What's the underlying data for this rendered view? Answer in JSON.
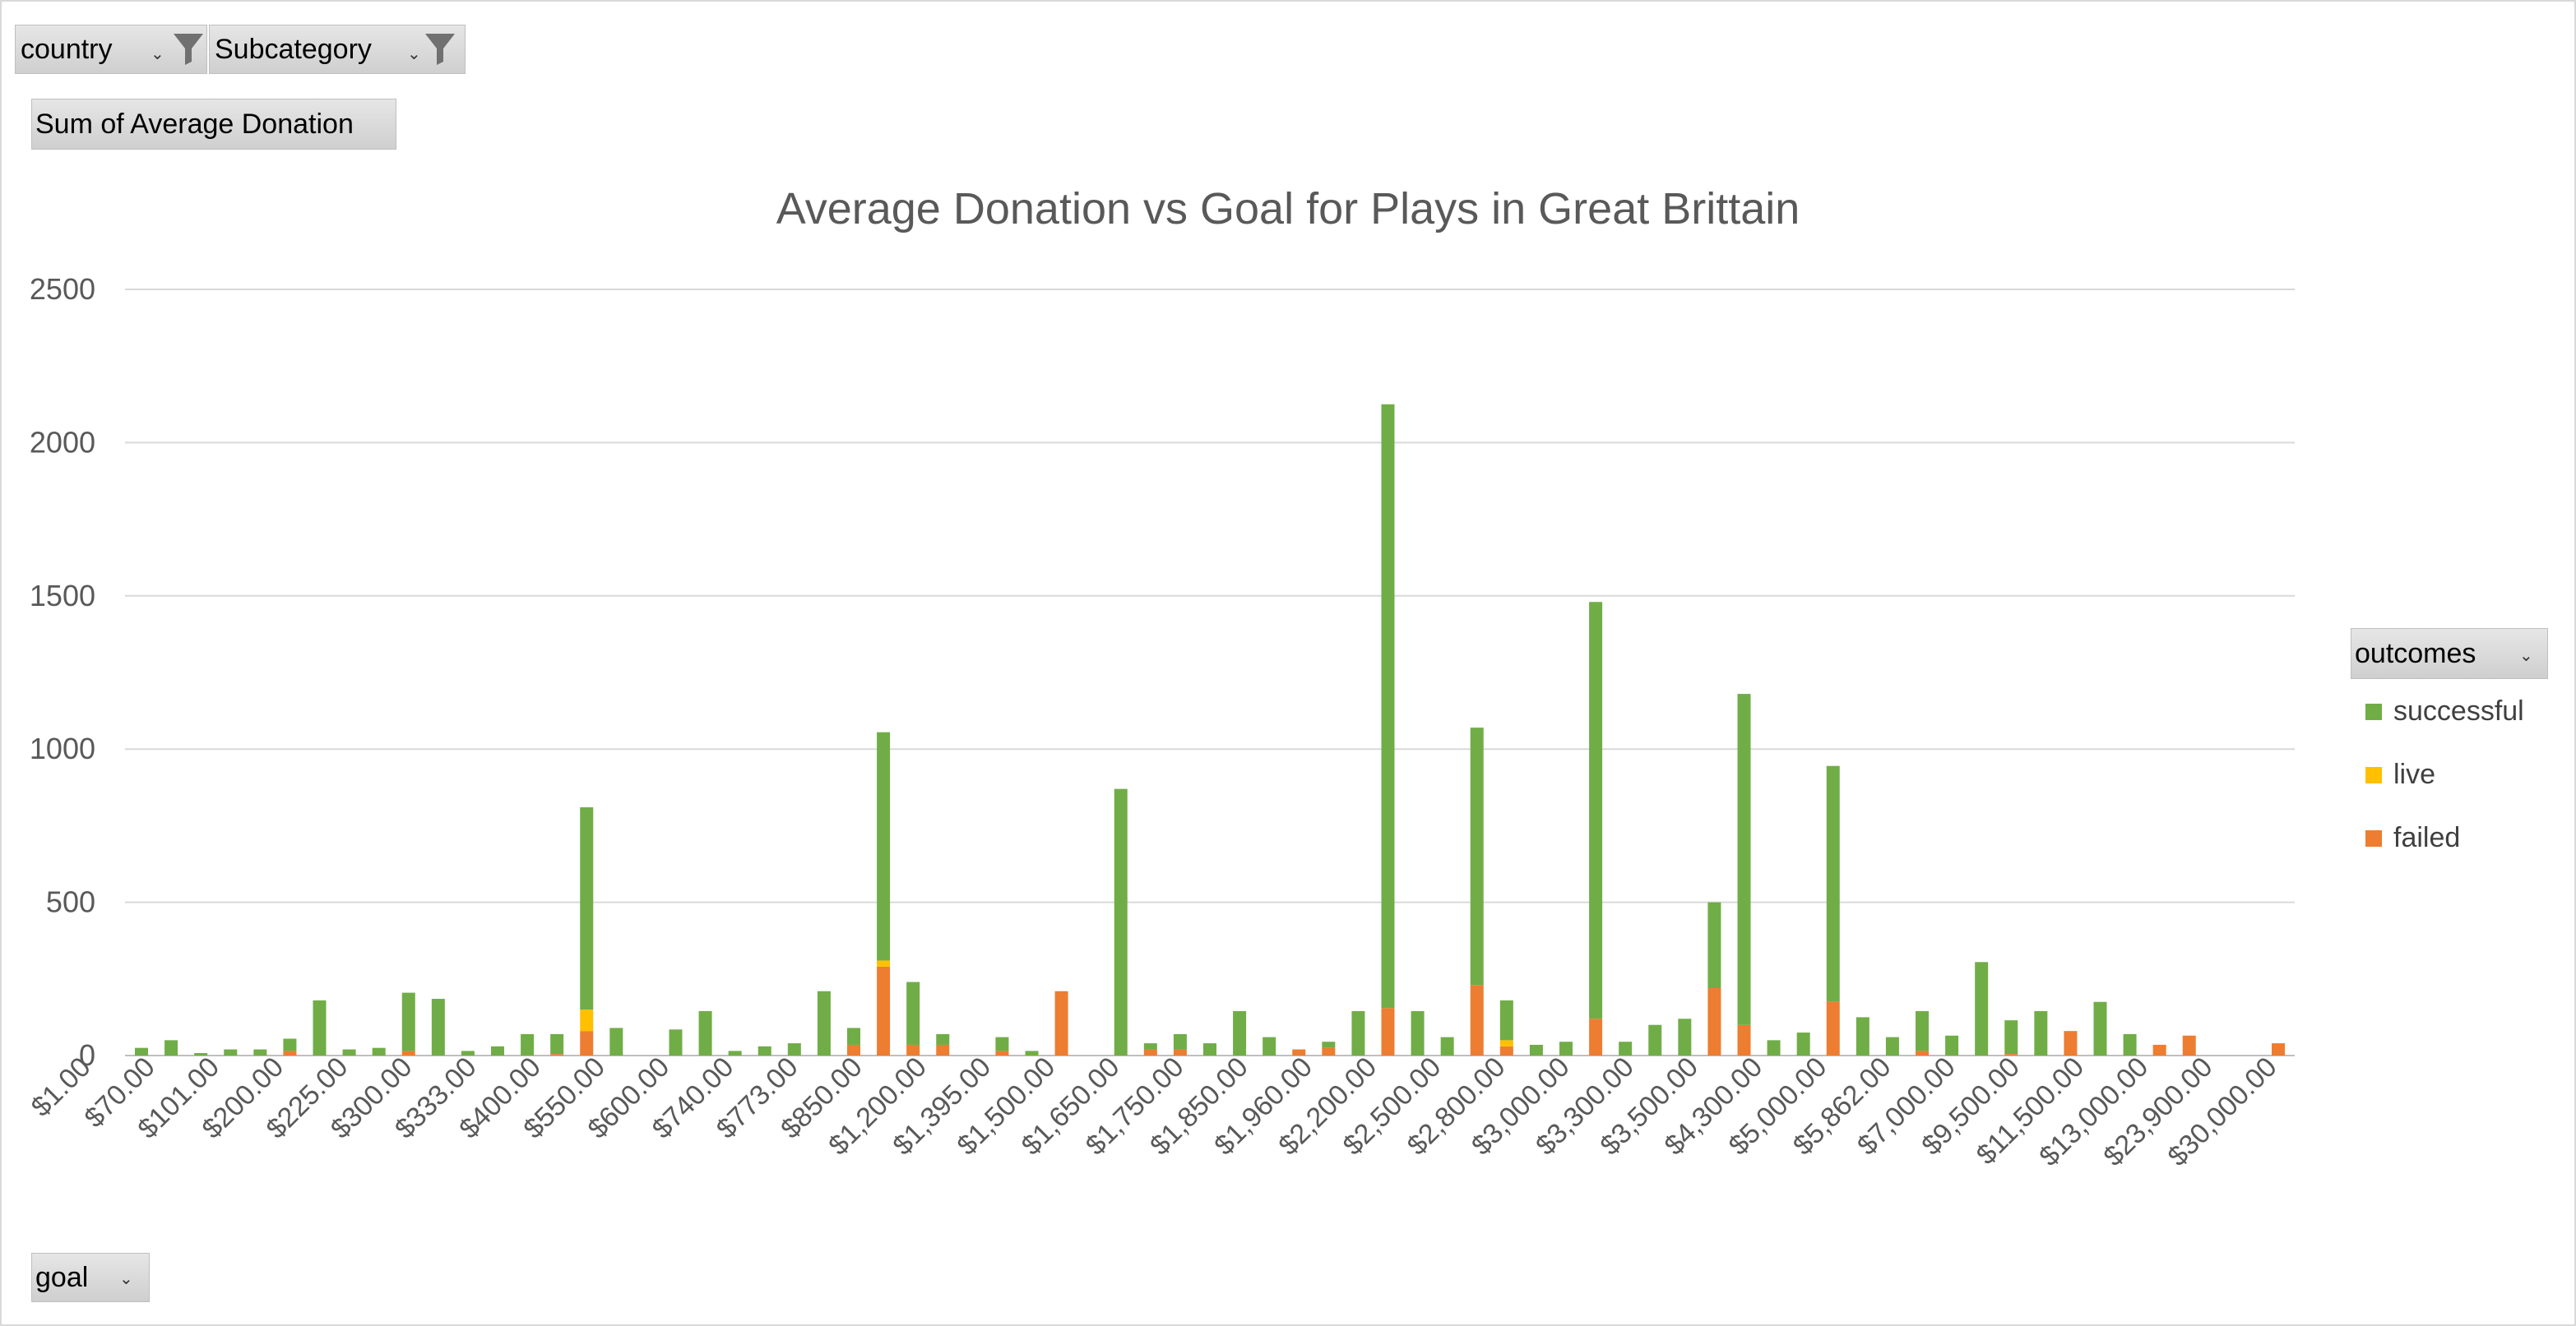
{
  "filters": {
    "country": "country",
    "subcategory": "Subcategory"
  },
  "value_field": "Sum of Average Donation",
  "axis_field": "goal",
  "legend": {
    "title": "outcomes",
    "items": [
      {
        "label": "successful",
        "color": "#70ad47"
      },
      {
        "label": "live",
        "color": "#ffc000"
      },
      {
        "label": "failed",
        "color": "#ed7d31"
      }
    ]
  },
  "icons": {
    "filter": "filter-funnel-icon",
    "dropdown": "dropdown-arrow-icon"
  },
  "chart_data": {
    "type": "bar",
    "stacked": true,
    "title": "Average Donation vs Goal for Plays in Great Brittain",
    "xlabel": "",
    "ylabel": "",
    "ylim": [
      0,
      2500
    ],
    "yticks": [
      0,
      500,
      1000,
      1500,
      2000,
      2500
    ],
    "grid": true,
    "legend_position": "right",
    "tick_labels": [
      "$1.00",
      "$70.00",
      "$101.00",
      "$200.00",
      "$225.00",
      "$300.00",
      "$333.00",
      "$400.00",
      "$550.00",
      "$600.00",
      "$740.00",
      "$773.00",
      "$850.00",
      "$1,200.00",
      "$1,395.00",
      "$1,500.00",
      "$1,650.00",
      "$1,750.00",
      "$1,850.00",
      "$1,960.00",
      "$2,200.00",
      "$2,500.00",
      "$2,800.00",
      "$3,000.00",
      "$3,300.00",
      "$3,500.00",
      "$4,300.00",
      "$5,000.00",
      "$5,862.00",
      "$7,000.00",
      "$9,500.00",
      "$11,500.00",
      "$13,000.00",
      "$23,900.00",
      "$30,000.00"
    ],
    "series": [
      {
        "name": "successful",
        "color": "#70ad47",
        "values": [
          25,
          50,
          8,
          20,
          20,
          40,
          180,
          20,
          25,
          190,
          185,
          15,
          30,
          70,
          65,
          660,
          90,
          0,
          85,
          145,
          15,
          30,
          40,
          210,
          55,
          745,
          205,
          35,
          0,
          45,
          15,
          0,
          0,
          870,
          20,
          50,
          40,
          145,
          60,
          0,
          20,
          145,
          1970,
          145,
          60,
          840,
          130,
          35,
          45,
          1360,
          45,
          100,
          120,
          280,
          1080,
          50,
          75,
          770,
          125,
          60,
          130,
          65,
          305,
          110,
          145,
          0,
          175,
          70,
          0,
          0,
          0,
          0,
          0
        ]
      },
      {
        "name": "live",
        "color": "#ffc000",
        "values": [
          0,
          0,
          0,
          0,
          0,
          0,
          0,
          0,
          0,
          0,
          0,
          0,
          0,
          0,
          0,
          70,
          0,
          0,
          0,
          0,
          0,
          0,
          0,
          0,
          0,
          20,
          0,
          0,
          0,
          0,
          0,
          0,
          0,
          0,
          0,
          0,
          0,
          0,
          0,
          0,
          0,
          0,
          0,
          0,
          0,
          0,
          20,
          0,
          0,
          0,
          0,
          0,
          0,
          0,
          0,
          0,
          0,
          0,
          0,
          0,
          0,
          0,
          0,
          0,
          0,
          0,
          0,
          0,
          0,
          0,
          0,
          0,
          0
        ]
      },
      {
        "name": "failed",
        "color": "#ed7d31",
        "values": [
          0,
          0,
          0,
          0,
          0,
          15,
          0,
          0,
          0,
          15,
          0,
          0,
          0,
          0,
          5,
          80,
          0,
          0,
          0,
          0,
          0,
          0,
          0,
          0,
          35,
          290,
          35,
          35,
          0,
          15,
          0,
          210,
          0,
          0,
          20,
          20,
          0,
          0,
          0,
          20,
          25,
          0,
          155,
          0,
          0,
          230,
          30,
          0,
          0,
          120,
          0,
          0,
          0,
          220,
          100,
          0,
          0,
          175,
          0,
          0,
          15,
          0,
          0,
          5,
          0,
          80,
          0,
          0,
          35,
          65,
          0,
          0,
          40
        ]
      }
    ]
  }
}
